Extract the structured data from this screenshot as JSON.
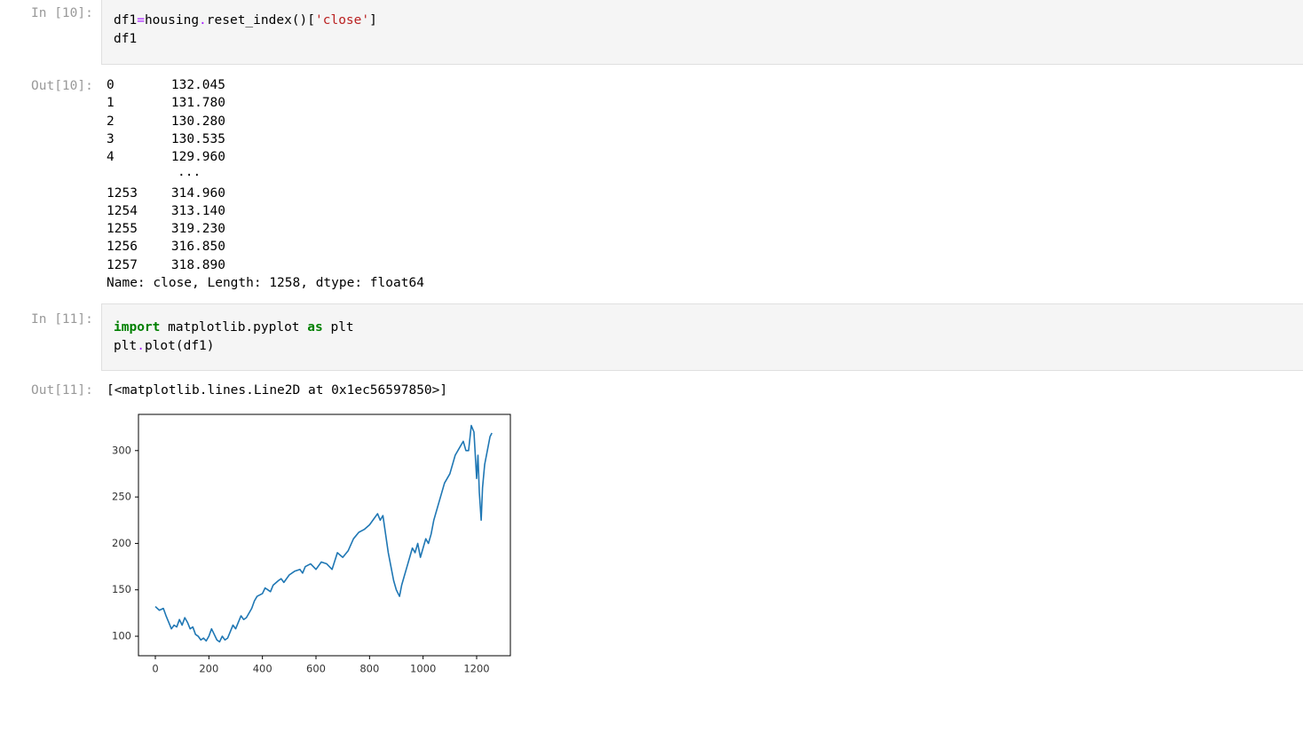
{
  "cells": [
    {
      "prompt": "In [10]:",
      "source": [
        [
          "df1",
          {
            "text": "=",
            "style": "operator"
          },
          "housing",
          {
            "text": ".",
            "style": "operator"
          },
          "reset_index()[",
          {
            "text": "'close'",
            "style": "string"
          },
          "]"
        ],
        [
          "df1"
        ]
      ]
    },
    {
      "prompt": "Out[10]:",
      "rows": [
        [
          "0",
          "132.045"
        ],
        [
          "1",
          "131.780"
        ],
        [
          "2",
          "130.280"
        ],
        [
          "3",
          "130.535"
        ],
        [
          "4",
          "129.960"
        ],
        [
          "..."
        ],
        [
          "1253",
          "314.960"
        ],
        [
          "1254",
          "313.140"
        ],
        [
          "1255",
          "319.230"
        ],
        [
          "1256",
          "316.850"
        ],
        [
          "1257",
          "318.890"
        ]
      ],
      "footer": "Name: close, Length: 1258, dtype: float64"
    },
    {
      "prompt": "In [11]:",
      "source": [
        [
          {
            "text": "import",
            "style": "keyword"
          },
          " matplotlib.pyplot ",
          {
            "text": "as",
            "style": "keyword"
          },
          " plt"
        ],
        [
          "plt",
          {
            "text": ".",
            "style": "operator"
          },
          "plot(df1)"
        ]
      ]
    },
    {
      "prompt": "Out[11]:",
      "text": "[<matplotlib.lines.Line2D at 0x1ec56597850>]"
    }
  ],
  "chart_data": {
    "type": "line",
    "color": "#1f77b4",
    "x": [
      0,
      15,
      30,
      40,
      50,
      60,
      70,
      80,
      90,
      100,
      110,
      120,
      130,
      140,
      150,
      160,
      170,
      180,
      190,
      200,
      210,
      220,
      230,
      240,
      250,
      260,
      270,
      280,
      290,
      300,
      310,
      320,
      330,
      340,
      360,
      370,
      380,
      400,
      410,
      420,
      430,
      440,
      460,
      470,
      480,
      500,
      520,
      540,
      550,
      560,
      580,
      600,
      620,
      640,
      660,
      680,
      700,
      720,
      740,
      760,
      780,
      800,
      820,
      830,
      840,
      850,
      860,
      870,
      880,
      890,
      900,
      912,
      920,
      930,
      940,
      950,
      960,
      970,
      980,
      990,
      1000,
      1010,
      1020,
      1030,
      1040,
      1060,
      1080,
      1100,
      1120,
      1140,
      1150,
      1160,
      1170,
      1180,
      1190,
      1200,
      1205,
      1210,
      1217,
      1222,
      1230,
      1240,
      1250,
      1257
    ],
    "y": [
      132,
      128,
      130,
      122,
      115,
      108,
      112,
      110,
      118,
      112,
      120,
      115,
      108,
      110,
      102,
      100,
      96,
      98,
      95,
      100,
      108,
      102,
      96,
      94,
      100,
      96,
      98,
      105,
      112,
      108,
      115,
      122,
      118,
      120,
      130,
      138,
      143,
      146,
      152,
      150,
      148,
      155,
      160,
      162,
      158,
      166,
      170,
      172,
      168,
      175,
      178,
      172,
      180,
      178,
      172,
      190,
      185,
      192,
      205,
      212,
      215,
      220,
      228,
      232,
      225,
      230,
      210,
      190,
      175,
      160,
      150,
      143,
      155,
      165,
      175,
      185,
      195,
      190,
      200,
      185,
      195,
      205,
      200,
      210,
      225,
      245,
      265,
      275,
      295,
      305,
      310,
      300,
      300,
      327,
      320,
      270,
      295,
      255,
      225,
      260,
      285,
      300,
      315,
      318.89
    ],
    "xlim": [
      -63,
      1326
    ],
    "ylim": [
      79,
      339
    ],
    "xticks": [
      0,
      200,
      400,
      600,
      800,
      1000,
      1200
    ],
    "yticks": [
      100,
      150,
      200,
      250,
      300
    ]
  }
}
